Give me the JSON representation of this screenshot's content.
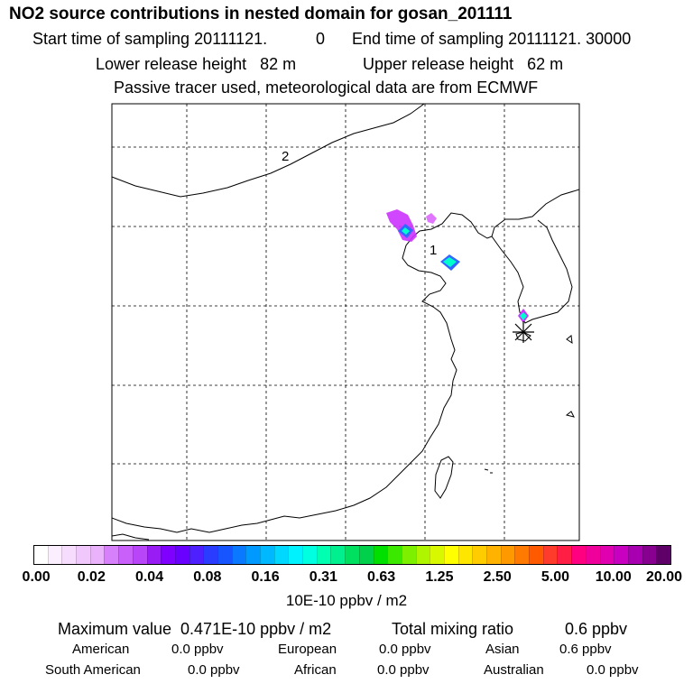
{
  "header": {
    "title": "NO2 source contributions in nested domain for gosan_201111",
    "start_label": "Start time of sampling 20111121.",
    "start_time": "0",
    "end_label": "End time of sampling 20111121. 30000",
    "lower_release": "Lower release height   82 m",
    "upper_release": "Upper release height   62 m",
    "tracer_note": "Passive tracer used, meteorological data are from ECMWF"
  },
  "map": {
    "labels": [
      "1",
      "2"
    ],
    "receptor_marker": "asterisk-icon",
    "colors": {
      "grid": "#000000",
      "coast": "#000000",
      "plume_low": "#cc33ff",
      "plume_mid": "#3366ff",
      "plume_core": "#00ffcc"
    }
  },
  "colorbar": {
    "colors": [
      "#ffffff",
      "#fbeefe",
      "#f7ddfd",
      "#f1c8fc",
      "#eab2fb",
      "#d680fa",
      "#c860f9",
      "#b845f7",
      "#9a1cf5",
      "#7f00ff",
      "#6a00ff",
      "#4e20ff",
      "#2a3cff",
      "#1655ff",
      "#0a78ff",
      "#0099ff",
      "#00b8ff",
      "#00d8ff",
      "#00f2ff",
      "#00ffe0",
      "#00ffb0",
      "#00f090",
      "#00e060",
      "#00d04a",
      "#00e000",
      "#3ae800",
      "#7df000",
      "#b0f500",
      "#d8f800",
      "#ffff00",
      "#ffe600",
      "#ffcc00",
      "#ffb300",
      "#ff9900",
      "#ff7a00",
      "#ff5a00",
      "#ff3b2b",
      "#ff1f44",
      "#ff0080",
      "#f0009a",
      "#e000b0",
      "#c800c0",
      "#a800b0",
      "#880090",
      "#5e0068"
    ],
    "tick_labels": [
      "0.00",
      "0.02",
      "0.04",
      "0.08",
      "0.16",
      "0.31",
      "0.63",
      "1.25",
      "2.50",
      "5.00",
      "10.00",
      "20.00"
    ],
    "unit": "10E-10 ppbv / m2"
  },
  "summary": {
    "max_value": "Maximum value  0.471E-10 ppbv / m2",
    "total_label": "Total mixing ratio",
    "total_value": "0.6 ppbv",
    "regions": [
      {
        "name": "American",
        "value": "0.0 ppbv"
      },
      {
        "name": "European",
        "value": "0.0 ppbv"
      },
      {
        "name": "Asian",
        "value": "0.6 ppbv"
      },
      {
        "name": "South American",
        "value": "0.0 ppbv"
      },
      {
        "name": "African",
        "value": "0.0 ppbv"
      },
      {
        "name": "Australian",
        "value": "0.0 ppbv"
      }
    ]
  }
}
